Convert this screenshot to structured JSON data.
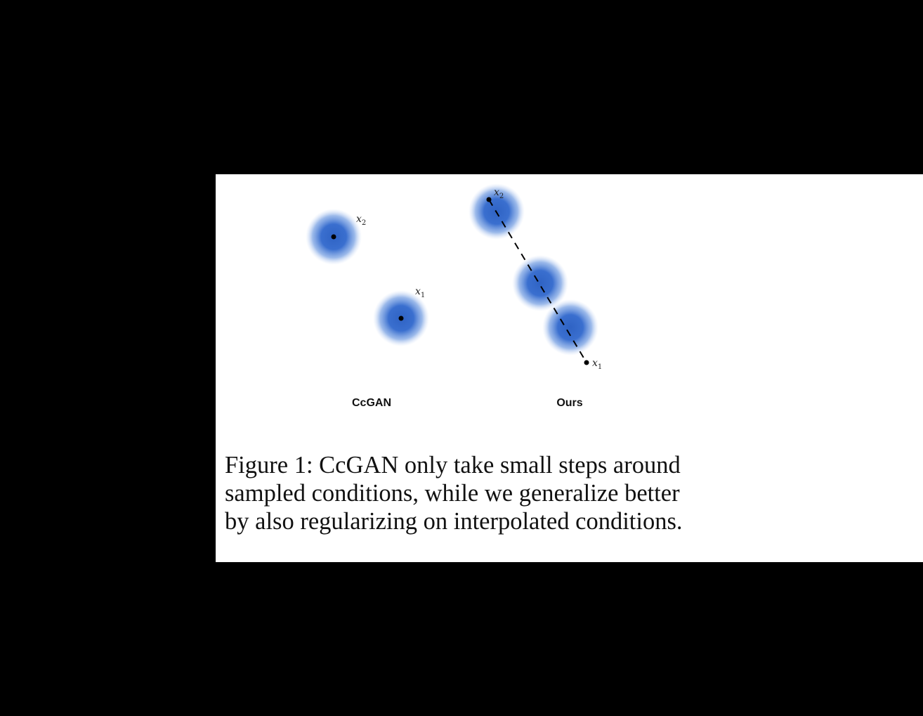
{
  "figure": {
    "panels": [
      {
        "label": "CcGAN",
        "points": [
          {
            "name": "x",
            "subscript": "2"
          },
          {
            "name": "x",
            "subscript": "1"
          }
        ]
      },
      {
        "label": "Ours",
        "points": [
          {
            "name": "x",
            "subscript": "2"
          },
          {
            "name": "x",
            "subscript": "1"
          }
        ]
      }
    ],
    "colors": {
      "blob_core": "#2f63c4",
      "blob_edge": "#6f9ae0",
      "dot": "#000000",
      "dashed_line": "#000000"
    }
  },
  "caption": {
    "lines": [
      "Figure 1: CcGAN only take small steps around",
      "sampled conditions, while we generalize better",
      "by also regularizing on interpolated conditions."
    ]
  }
}
